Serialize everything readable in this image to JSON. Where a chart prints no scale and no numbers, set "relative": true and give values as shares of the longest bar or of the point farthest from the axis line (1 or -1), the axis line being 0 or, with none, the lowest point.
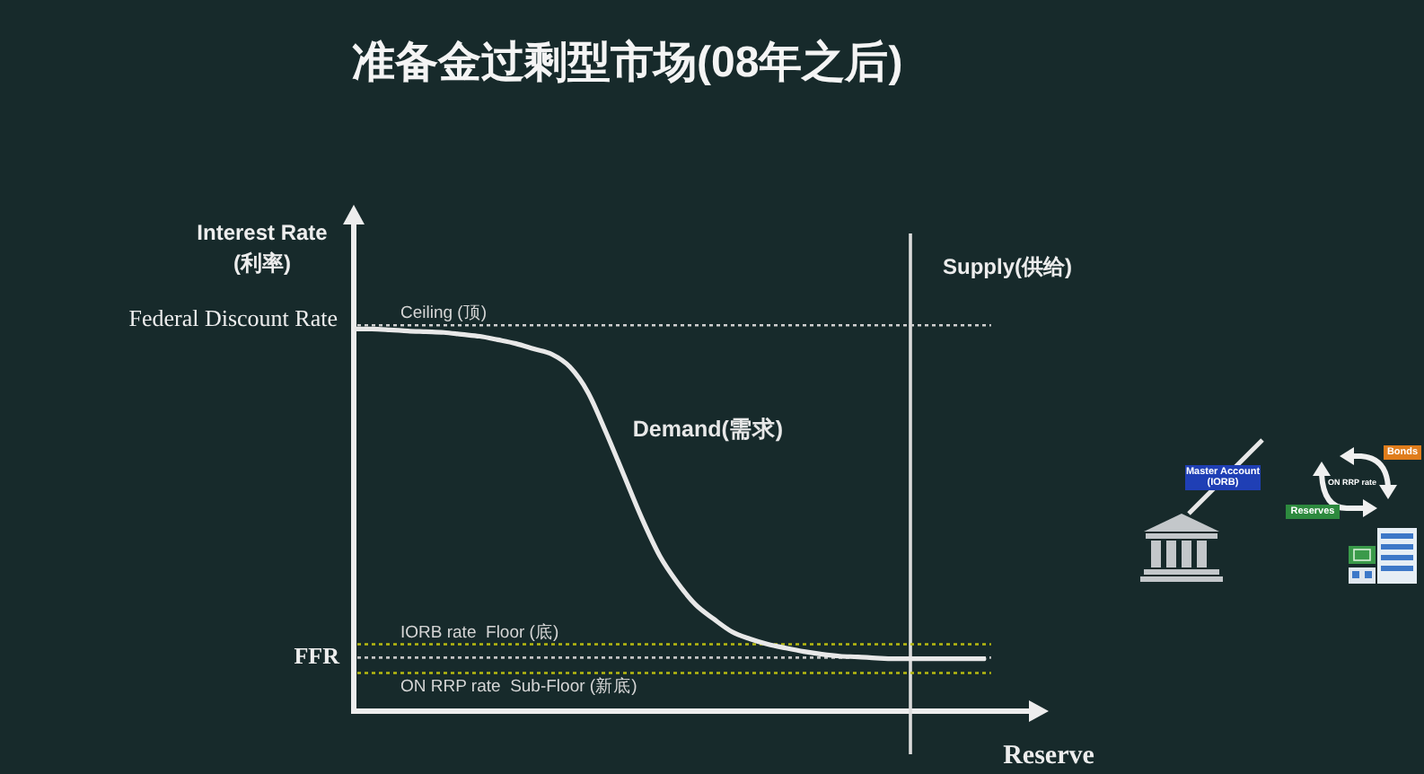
{
  "chart_data": {
    "type": "line",
    "title": "准备金过剩型市场(08年之后)",
    "xlabel": "Reserve",
    "ylabel": "Interest Rate (利率)",
    "relative": true,
    "tick_labels": false,
    "categories": [
      null,
      null,
      null,
      null,
      null,
      null,
      null,
      null,
      null,
      null,
      null,
      null,
      null,
      null,
      null,
      null,
      null,
      null,
      null,
      null,
      null,
      null,
      null,
      null,
      null,
      null,
      null,
      null,
      null,
      null,
      null,
      null,
      null,
      null,
      null,
      null
    ],
    "series": [
      {
        "name": "Demand(需求)",
        "color": "#e8e8e8",
        "values": [
          1.0,
          1.0,
          0.998,
          0.995,
          0.993,
          0.991,
          0.986,
          0.981,
          0.972,
          0.962,
          0.948,
          0.934,
          0.901,
          0.835,
          0.731,
          0.618,
          0.505,
          0.406,
          0.335,
          0.278,
          0.241,
          0.208,
          0.189,
          0.175,
          0.165,
          0.156,
          0.149,
          0.144,
          0.142,
          0.139,
          0.137,
          0.137,
          0.137,
          0.137,
          0.137,
          0.137
        ]
      }
    ],
    "ref_lines": [
      {
        "axis": "y",
        "value": 1.01,
        "label": "Ceiling (顶)",
        "color": "#d0d0d0",
        "line_style": "dotted"
      },
      {
        "axis": "y",
        "value": 0.175,
        "label": "IORB rate  Floor (底)",
        "color": "#b8bb10",
        "line_style": "dotted"
      },
      {
        "axis": "y",
        "value": 0.14,
        "color": "#c4c4c4",
        "line_style": "dotted"
      },
      {
        "axis": "y",
        "value": 0.1,
        "label": "ON RRP rate  Sub-Floor (新底)",
        "color": "#b8bb10",
        "line_style": "dotted"
      }
    ],
    "annotations": [
      "Federal Discount Rate",
      "FFR",
      "Supply(供给)",
      "Master Account (IORB)",
      "ON RRP rate",
      "Bonds",
      "Reserves"
    ]
  }
}
